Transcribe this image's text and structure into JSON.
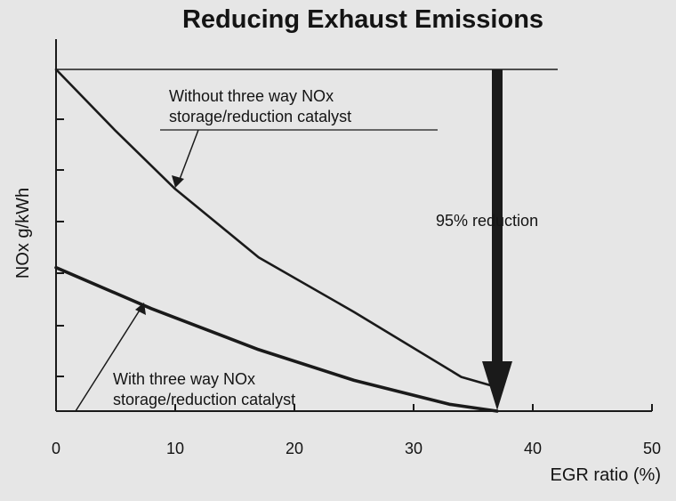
{
  "chart_data": {
    "type": "line",
    "title": "Reducing Exhaust Emissions",
    "xlabel": "EGR ratio (%)",
    "ylabel": "NOx g/kWh",
    "xlim": [
      0,
      50
    ],
    "x_ticks": [
      "0",
      "10",
      "20",
      "30",
      "40",
      "50"
    ],
    "y_tick_labels_shown": false,
    "grid": false,
    "series": [
      {
        "name": "Without three way NOx storage/reduction catalyst",
        "x": [
          0,
          5,
          10,
          17,
          25,
          34,
          37
        ],
        "y": [
          100,
          82,
          65,
          45,
          29,
          10,
          7
        ]
      },
      {
        "name": "With three way NOx storage/reduction catalyst",
        "x": [
          0,
          8,
          17,
          25,
          33,
          37
        ],
        "y": [
          42,
          30,
          18,
          9,
          2,
          0
        ]
      }
    ],
    "annotations": {
      "upper_label_line1": "Without three way NOx",
      "upper_label_line2": "storage/reduction catalyst",
      "lower_label_line1": "With three way NOx",
      "lower_label_line2": "storage/reduction catalyst",
      "arrow_label": "95% reduction"
    },
    "colors": {
      "line": "#1a1a1a",
      "background": "#e6e6e6"
    }
  }
}
